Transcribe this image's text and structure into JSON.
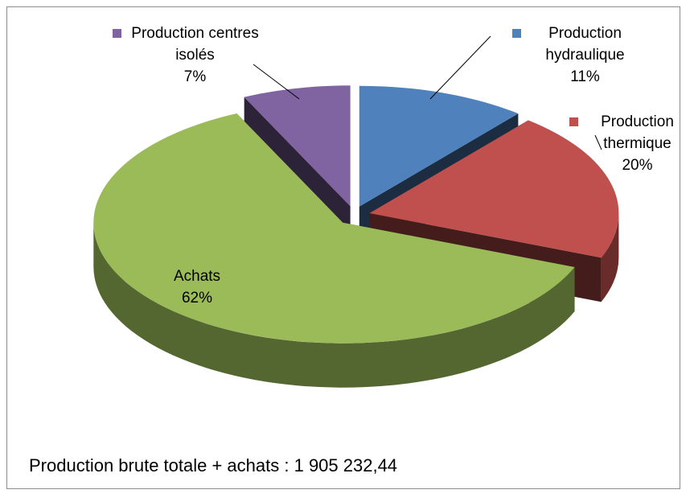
{
  "chart_data": {
    "type": "pie",
    "three_d": true,
    "exploded": true,
    "categories": [
      "Production hydraulique",
      "Production thermique",
      "Achats",
      "Production centres isolés"
    ],
    "values": [
      11,
      20,
      62,
      7
    ],
    "value_labels": [
      "11%",
      "20%",
      "62%",
      "7%"
    ],
    "colors": [
      "#4f81bd",
      "#c0504d",
      "#9bbb59",
      "#8064a2"
    ],
    "annotation": "Production brute totale + achats : 1 905 232,44"
  }
}
